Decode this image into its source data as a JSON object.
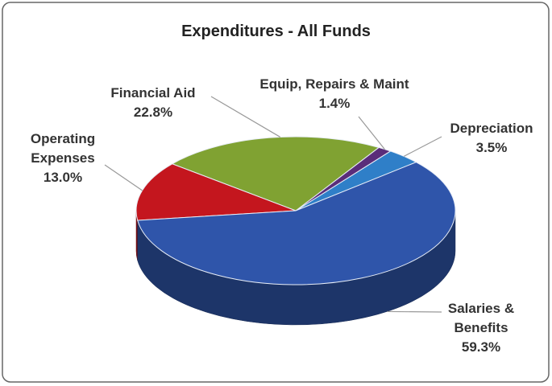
{
  "chart_data": {
    "type": "pie",
    "title": "Expenditures - All Funds",
    "categories": [
      "Depreciation",
      "Equip, Repairs & Maint",
      "Financial Aid",
      "Operating Expenses",
      "Salaries & Benefits"
    ],
    "values": [
      3.5,
      1.4,
      22.8,
      13.0,
      59.3
    ],
    "value_labels": [
      "3.5%",
      "1.4%",
      "22.8%",
      "13.0%",
      "59.3%"
    ],
    "colors": [
      "#2f7fc8",
      "#5a2d7a",
      "#80a232",
      "#c4161e",
      "#2f55aa"
    ]
  }
}
